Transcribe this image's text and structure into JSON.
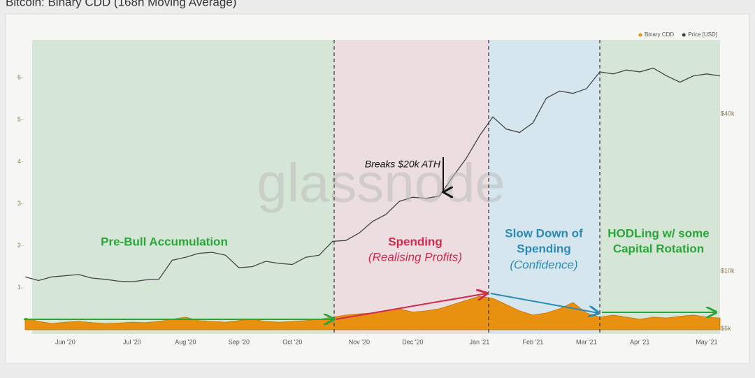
{
  "chart_data": {
    "type": "line",
    "title": "Bitcoin: Binary CDD (168h Moving Average)",
    "categories": [
      null,
      null,
      null,
      "Jun '20",
      null,
      null,
      null,
      null,
      "Jul '20",
      null,
      null,
      null,
      "Aug '20",
      null,
      null,
      null,
      "Sep '20",
      null,
      null,
      null,
      "Oct '20",
      null,
      null,
      null,
      null,
      "Nov '20",
      null,
      null,
      null,
      "Dec '20",
      null,
      null,
      null,
      null,
      "Jan '21",
      null,
      null,
      null,
      "Feb '21",
      null,
      null,
      null,
      "Mar '21",
      null,
      null,
      null,
      "Apr '21",
      null,
      null,
      null,
      null,
      "May '21",
      null
    ],
    "series": [
      {
        "name": "Binary CDD",
        "color": "#e8900f",
        "axis": "y",
        "values": [
          0.28,
          0.2,
          0.15,
          0.18,
          0.2,
          0.17,
          0.15,
          0.16,
          0.18,
          0.17,
          0.2,
          0.25,
          0.3,
          0.22,
          0.2,
          0.18,
          0.22,
          0.25,
          0.2,
          0.18,
          0.2,
          0.22,
          0.25,
          0.3,
          0.35,
          0.38,
          0.4,
          0.45,
          0.5,
          0.42,
          0.45,
          0.5,
          0.6,
          0.7,
          0.8,
          0.75,
          0.6,
          0.45,
          0.35,
          0.4,
          0.5,
          0.65,
          0.4,
          0.3,
          0.35,
          0.3,
          0.25,
          0.3,
          0.28,
          0.32,
          0.35,
          0.3,
          0.28
        ]
      },
      {
        "name": "Price [USD]",
        "color": "#444444",
        "axis": "y2",
        "values": [
          9500,
          9200,
          9500,
          9600,
          9700,
          9400,
          9300,
          9150,
          9100,
          9250,
          9300,
          11000,
          11300,
          11700,
          11800,
          11500,
          10300,
          10400,
          10900,
          10700,
          10600,
          11300,
          11500,
          13000,
          13100,
          14000,
          15500,
          16500,
          18500,
          19200,
          19000,
          19400,
          23000,
          27000,
          33000,
          39000,
          35000,
          34000,
          37000,
          46000,
          49000,
          48000,
          50000,
          58000,
          57000,
          59000,
          58000,
          60000,
          56000,
          53000,
          56000,
          57000,
          56000
        ]
      }
    ],
    "ylim": [
      -0.1,
      6.9
    ],
    "yticks": [
      1,
      2,
      3,
      4,
      5,
      6
    ],
    "y2lim": [
      5740,
      77000
    ],
    "y2scale": "log",
    "y2ticks": [
      {
        "value": 6000,
        "label": "$6k"
      },
      {
        "value": 10000,
        "label": "$10k"
      },
      {
        "value": 40000,
        "label": "$40k"
      }
    ],
    "legend": "upper right",
    "annotations": [
      "Pre-Bull Accumulation",
      "Spending",
      "(Realising Profits)",
      "Slow Down of",
      "Spending",
      "(Confidence)",
      "HODLing w/ some",
      "Capital Rotation",
      "Breaks $20k ATH"
    ],
    "watermark": "glassnode"
  }
}
